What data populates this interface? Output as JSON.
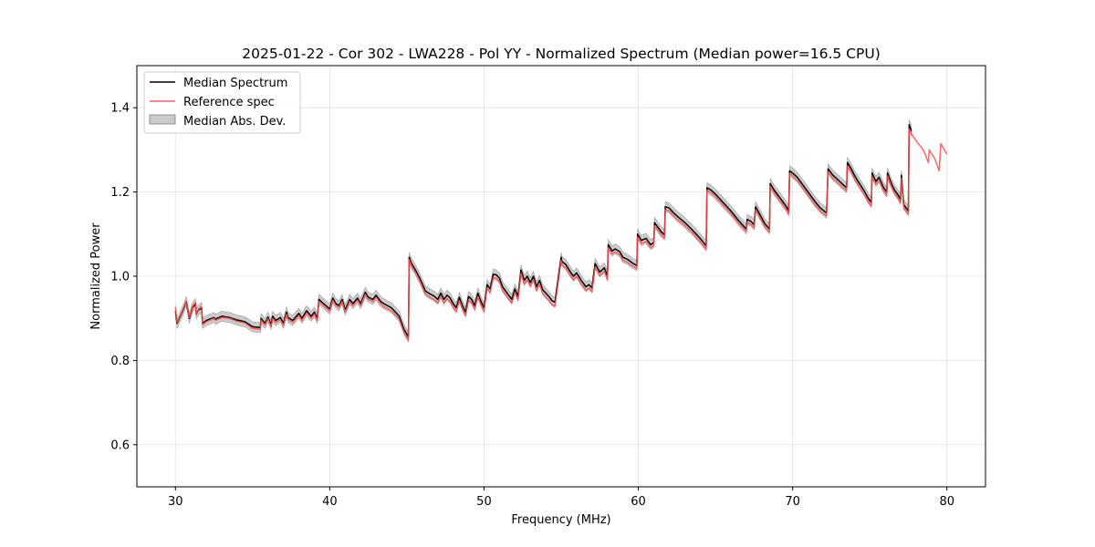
{
  "chart_data": {
    "type": "line",
    "title": "2025-01-22 - Cor 302 - LWA228 - Pol YY - Normalized Spectrum (Median power=16.5 CPU)",
    "xlabel": "Frequency (MHz)",
    "ylabel": "Normalized Power",
    "xlim": [
      27.5,
      82.5
    ],
    "ylim": [
      0.5,
      1.5
    ],
    "xticks": [
      30,
      40,
      50,
      60,
      70,
      80
    ],
    "yticks": [
      0.6,
      0.8,
      1.0,
      1.2,
      1.4
    ],
    "xtick_labels": [
      "30",
      "40",
      "50",
      "60",
      "70",
      "80"
    ],
    "ytick_labels": [
      "0.6",
      "0.8",
      "1.0",
      "1.2",
      "1.4"
    ],
    "grid": true,
    "legend_position": "top-left",
    "legend": [
      "Median Spectrum",
      "Reference spec",
      "Median Abs. Dev."
    ],
    "colors": {
      "median": "#000000",
      "reference": "#ff4d4d",
      "mad_fill": "#a0a0a0",
      "mad_edge": "#7f7f7f"
    },
    "mad_halfwidth": 0.012,
    "series": [
      {
        "name": "Median Spectrum",
        "x": [
          30.0,
          30.1,
          30.5,
          30.7,
          30.9,
          31.1,
          31.3,
          31.35,
          31.5,
          31.7,
          31.75,
          32.0,
          32.5,
          32.6,
          33.0,
          33.5,
          34.0,
          34.5,
          35.0,
          35.5,
          35.55,
          35.8,
          36.0,
          36.2,
          36.3,
          36.5,
          36.8,
          37.0,
          37.2,
          37.3,
          37.6,
          38.0,
          38.2,
          38.5,
          38.8,
          39.0,
          39.2,
          39.3,
          39.6,
          40.0,
          40.2,
          40.4,
          40.6,
          40.8,
          41.0,
          41.3,
          41.5,
          41.8,
          42.0,
          42.3,
          42.5,
          42.8,
          43.0,
          43.3,
          43.5,
          44.0,
          44.5,
          44.8,
          45.1,
          45.15,
          45.3,
          45.6,
          45.9,
          46.2,
          46.5,
          46.8,
          47.0,
          47.2,
          47.4,
          47.6,
          47.8,
          48.0,
          48.2,
          48.4,
          48.6,
          48.8,
          49.0,
          49.2,
          49.4,
          49.6,
          49.8,
          50.0,
          50.2,
          50.4,
          50.6,
          50.8,
          51.0,
          51.2,
          51.4,
          51.6,
          51.8,
          52.0,
          52.2,
          52.4,
          52.6,
          52.8,
          53.0,
          53.2,
          53.4,
          53.6,
          53.8,
          54.0,
          54.2,
          54.4,
          54.6,
          55.0,
          55.05,
          55.3,
          55.6,
          55.8,
          56.0,
          56.3,
          56.6,
          56.8,
          57.0,
          57.2,
          57.5,
          57.8,
          58.0,
          58.05,
          58.3,
          58.5,
          58.8,
          59.0,
          59.3,
          59.6,
          59.9,
          59.95,
          60.2,
          60.5,
          60.8,
          61.0,
          61.05,
          61.3,
          61.5,
          61.7,
          61.75,
          62.0,
          62.3,
          62.6,
          63.0,
          63.5,
          64.0,
          64.4,
          64.45,
          64.7,
          65.0,
          65.5,
          66.0,
          66.5,
          67.0,
          67.05,
          67.3,
          67.5,
          67.6,
          67.9,
          68.2,
          68.5,
          68.55,
          68.8,
          69.0,
          69.3,
          69.6,
          69.75,
          69.8,
          70.0,
          70.3,
          70.6,
          70.9,
          71.2,
          71.5,
          71.8,
          72.2,
          72.3,
          72.6,
          72.9,
          73.2,
          73.5,
          73.55,
          73.8,
          74.0,
          74.3,
          74.6,
          74.9,
          75.1,
          75.15,
          75.4,
          75.6,
          75.9,
          76.1,
          76.15,
          76.4,
          76.6,
          76.8,
          77.0,
          77.05,
          77.2,
          77.3,
          77.5,
          77.55,
          77.7
        ],
        "values": [
          0.918,
          0.888,
          0.92,
          0.94,
          0.9,
          0.925,
          0.935,
          0.91,
          0.92,
          0.925,
          0.888,
          0.895,
          0.902,
          0.898,
          0.905,
          0.902,
          0.896,
          0.892,
          0.88,
          0.878,
          0.9,
          0.888,
          0.903,
          0.885,
          0.905,
          0.895,
          0.902,
          0.888,
          0.915,
          0.902,
          0.895,
          0.912,
          0.9,
          0.918,
          0.905,
          0.915,
          0.9,
          0.945,
          0.935,
          0.922,
          0.948,
          0.935,
          0.93,
          0.945,
          0.92,
          0.945,
          0.935,
          0.948,
          0.935,
          0.962,
          0.95,
          0.945,
          0.955,
          0.94,
          0.935,
          0.925,
          0.905,
          0.875,
          0.856,
          1.045,
          1.03,
          1.012,
          0.99,
          0.965,
          0.958,
          0.952,
          0.945,
          0.96,
          0.945,
          0.955,
          0.948,
          0.935,
          0.925,
          0.95,
          0.93,
          0.915,
          0.952,
          0.945,
          0.93,
          0.96,
          0.94,
          0.925,
          0.98,
          0.97,
          1.005,
          1.003,
          0.995,
          0.975,
          0.965,
          0.955,
          0.945,
          0.97,
          0.952,
          1.015,
          0.99,
          1.0,
          0.985,
          1.0,
          0.975,
          0.99,
          0.968,
          0.96,
          0.952,
          0.942,
          0.938,
          1.045,
          1.035,
          1.028,
          1.01,
          1.0,
          1.008,
          0.99,
          0.975,
          0.98,
          0.972,
          1.03,
          1.01,
          1.02,
          1.0,
          1.075,
          1.06,
          1.065,
          1.058,
          1.045,
          1.04,
          1.032,
          1.025,
          1.1,
          1.085,
          1.09,
          1.075,
          1.08,
          1.127,
          1.115,
          1.105,
          1.098,
          1.165,
          1.162,
          1.15,
          1.14,
          1.128,
          1.11,
          1.09,
          1.072,
          1.21,
          1.205,
          1.195,
          1.175,
          1.155,
          1.132,
          1.112,
          1.135,
          1.13,
          1.122,
          1.165,
          1.145,
          1.125,
          1.112,
          1.22,
          1.205,
          1.195,
          1.18,
          1.165,
          1.155,
          1.25,
          1.245,
          1.235,
          1.22,
          1.205,
          1.19,
          1.175,
          1.162,
          1.15,
          1.255,
          1.24,
          1.23,
          1.22,
          1.21,
          1.27,
          1.255,
          1.24,
          1.222,
          1.205,
          1.185,
          1.175,
          1.245,
          1.225,
          1.235,
          1.21,
          1.2,
          1.245,
          1.22,
          1.205,
          1.195,
          1.182,
          1.24,
          1.17,
          1.165,
          1.155,
          1.36,
          1.345
        ]
      },
      {
        "name": "Reference spec",
        "x": [
          30.0,
          30.1,
          30.5,
          30.7,
          30.9,
          31.1,
          31.3,
          31.35,
          31.5,
          31.7,
          31.75,
          32.0,
          32.5,
          32.6,
          33.0,
          33.5,
          34.0,
          34.5,
          35.0,
          35.5,
          35.55,
          35.8,
          36.0,
          36.2,
          36.3,
          36.5,
          36.8,
          37.0,
          37.2,
          37.3,
          37.6,
          38.0,
          38.2,
          38.5,
          38.8,
          39.0,
          39.2,
          39.3,
          39.6,
          40.0,
          40.2,
          40.4,
          40.6,
          40.8,
          41.0,
          41.3,
          41.5,
          41.8,
          42.0,
          42.3,
          42.5,
          42.8,
          43.0,
          43.3,
          43.5,
          44.0,
          44.5,
          44.8,
          45.1,
          45.15,
          45.3,
          45.6,
          45.9,
          46.2,
          46.5,
          46.8,
          47.0,
          47.2,
          47.4,
          47.6,
          47.8,
          48.0,
          48.2,
          48.4,
          48.6,
          48.8,
          49.0,
          49.2,
          49.4,
          49.6,
          49.8,
          50.0,
          50.2,
          50.4,
          50.6,
          50.8,
          51.0,
          51.2,
          51.4,
          51.6,
          51.8,
          52.0,
          52.2,
          52.4,
          52.6,
          52.8,
          53.0,
          53.2,
          53.4,
          53.6,
          53.8,
          54.0,
          54.2,
          54.4,
          54.6,
          55.0,
          55.05,
          55.3,
          55.6,
          55.8,
          56.0,
          56.3,
          56.6,
          56.8,
          57.0,
          57.2,
          57.5,
          57.8,
          58.0,
          58.05,
          58.3,
          58.5,
          58.8,
          59.0,
          59.3,
          59.6,
          59.9,
          59.95,
          60.2,
          60.5,
          60.8,
          61.0,
          61.05,
          61.3,
          61.5,
          61.7,
          61.75,
          62.0,
          62.3,
          62.6,
          63.0,
          63.5,
          64.0,
          64.4,
          64.45,
          64.7,
          65.0,
          65.5,
          66.0,
          66.5,
          67.0,
          67.05,
          67.3,
          67.5,
          67.6,
          67.9,
          68.2,
          68.5,
          68.55,
          68.8,
          69.0,
          69.3,
          69.6,
          69.75,
          69.8,
          70.0,
          70.3,
          70.6,
          70.9,
          71.2,
          71.5,
          71.8,
          72.2,
          72.3,
          72.6,
          72.9,
          73.2,
          73.5,
          73.55,
          73.8,
          74.0,
          74.3,
          74.6,
          74.9,
          75.1,
          75.15,
          75.4,
          75.6,
          75.9,
          76.1,
          76.15,
          76.4,
          76.6,
          76.8,
          77.0,
          77.05,
          77.2,
          77.3,
          77.5,
          77.55,
          77.7,
          78.0,
          78.5,
          78.8,
          78.85,
          79.2,
          79.5,
          79.6,
          80.0
        ],
        "values": [
          0.925,
          0.89,
          0.922,
          0.94,
          0.902,
          0.928,
          0.938,
          0.908,
          0.922,
          0.928,
          0.885,
          0.892,
          0.9,
          0.895,
          0.902,
          0.9,
          0.893,
          0.889,
          0.876,
          0.874,
          0.896,
          0.884,
          0.899,
          0.88,
          0.9,
          0.89,
          0.897,
          0.883,
          0.91,
          0.897,
          0.89,
          0.907,
          0.895,
          0.913,
          0.9,
          0.91,
          0.895,
          0.94,
          0.93,
          0.917,
          0.943,
          0.93,
          0.925,
          0.94,
          0.915,
          0.94,
          0.93,
          0.943,
          0.93,
          0.957,
          0.945,
          0.94,
          0.95,
          0.935,
          0.928,
          0.918,
          0.898,
          0.868,
          0.848,
          1.04,
          1.025,
          1.006,
          0.984,
          0.958,
          0.95,
          0.944,
          0.937,
          0.952,
          0.937,
          0.947,
          0.94,
          0.927,
          0.917,
          0.942,
          0.922,
          0.907,
          0.944,
          0.937,
          0.922,
          0.952,
          0.932,
          0.917,
          0.972,
          0.962,
          0.997,
          0.995,
          0.987,
          0.967,
          0.957,
          0.947,
          0.937,
          0.962,
          0.944,
          1.007,
          0.982,
          0.992,
          0.977,
          0.992,
          0.966,
          0.981,
          0.959,
          0.951,
          0.943,
          0.933,
          0.929,
          1.038,
          1.028,
          1.02,
          1.002,
          0.992,
          1.0,
          0.982,
          0.967,
          0.972,
          0.964,
          1.022,
          1.002,
          1.012,
          0.992,
          1.068,
          1.053,
          1.058,
          1.051,
          1.038,
          1.033,
          1.025,
          1.018,
          1.093,
          1.078,
          1.083,
          1.068,
          1.073,
          1.12,
          1.108,
          1.098,
          1.091,
          1.158,
          1.155,
          1.143,
          1.133,
          1.121,
          1.103,
          1.083,
          1.065,
          1.204,
          1.199,
          1.189,
          1.169,
          1.149,
          1.126,
          1.106,
          1.128,
          1.123,
          1.115,
          1.158,
          1.138,
          1.118,
          1.105,
          1.214,
          1.199,
          1.188,
          1.173,
          1.158,
          1.148,
          1.244,
          1.238,
          1.228,
          1.213,
          1.198,
          1.183,
          1.168,
          1.155,
          1.143,
          1.248,
          1.233,
          1.223,
          1.213,
          1.203,
          1.262,
          1.247,
          1.232,
          1.214,
          1.197,
          1.177,
          1.167,
          1.238,
          1.218,
          1.228,
          1.203,
          1.193,
          1.238,
          1.213,
          1.198,
          1.188,
          1.175,
          1.232,
          1.163,
          1.158,
          1.148,
          1.35,
          1.338,
          1.322,
          1.298,
          1.27,
          1.3,
          1.28,
          1.25,
          1.315,
          1.29
        ]
      }
    ]
  }
}
